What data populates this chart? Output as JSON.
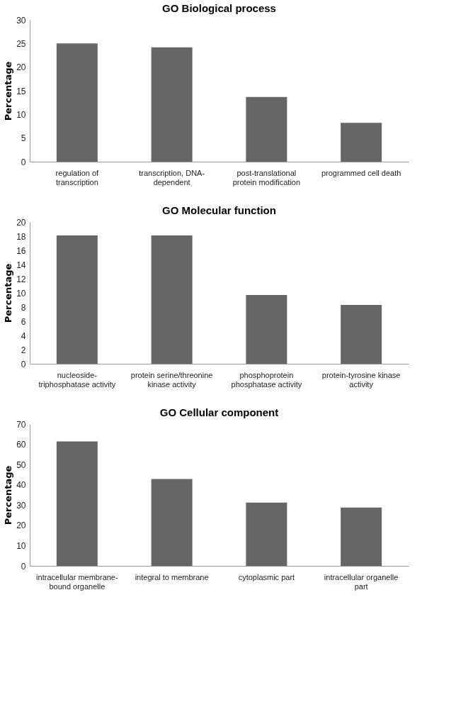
{
  "chart_data": [
    {
      "type": "bar",
      "title": "GO Biological process",
      "ylabel": "Percentage",
      "categories": [
        "regulation of transcription",
        "transcription, DNA-dependent",
        "post-translational protein modification",
        "programmed cell death"
      ],
      "values": [
        25,
        24.2,
        13.7,
        8.2
      ],
      "color": "#666666",
      "ylim": [
        0,
        30
      ],
      "yticks": [
        0,
        5,
        10,
        15,
        20,
        25,
        30
      ],
      "grid": false
    },
    {
      "type": "bar",
      "title": "GO Molecular function",
      "ylabel": "Percentage",
      "categories": [
        "nucleoside-triphosphatase activity",
        "protein serine/threonine kinase activity",
        "phosphoprotein  phosphatase activity",
        "protein-tyrosine kinase activity"
      ],
      "values": [
        18.1,
        18.1,
        9.7,
        8.3
      ],
      "color": "#666666",
      "ylim": [
        0,
        20
      ],
      "yticks": [
        0,
        2,
        4,
        6,
        8,
        10,
        12,
        14,
        16,
        18,
        20
      ],
      "grid": false
    },
    {
      "type": "bar",
      "title": "GO Cellular component",
      "ylabel": "Percentage",
      "categories": [
        "intracellular membrane-bound organelle",
        "integral to membrane",
        "cytoplasmic part",
        "intracellular organelle part"
      ],
      "values": [
        61.4,
        42.9,
        31.2,
        28.8
      ],
      "color": "#666666",
      "ylim": [
        0,
        70
      ],
      "yticks": [
        0,
        10,
        20,
        30,
        40,
        50,
        60,
        70
      ],
      "grid": false
    }
  ]
}
